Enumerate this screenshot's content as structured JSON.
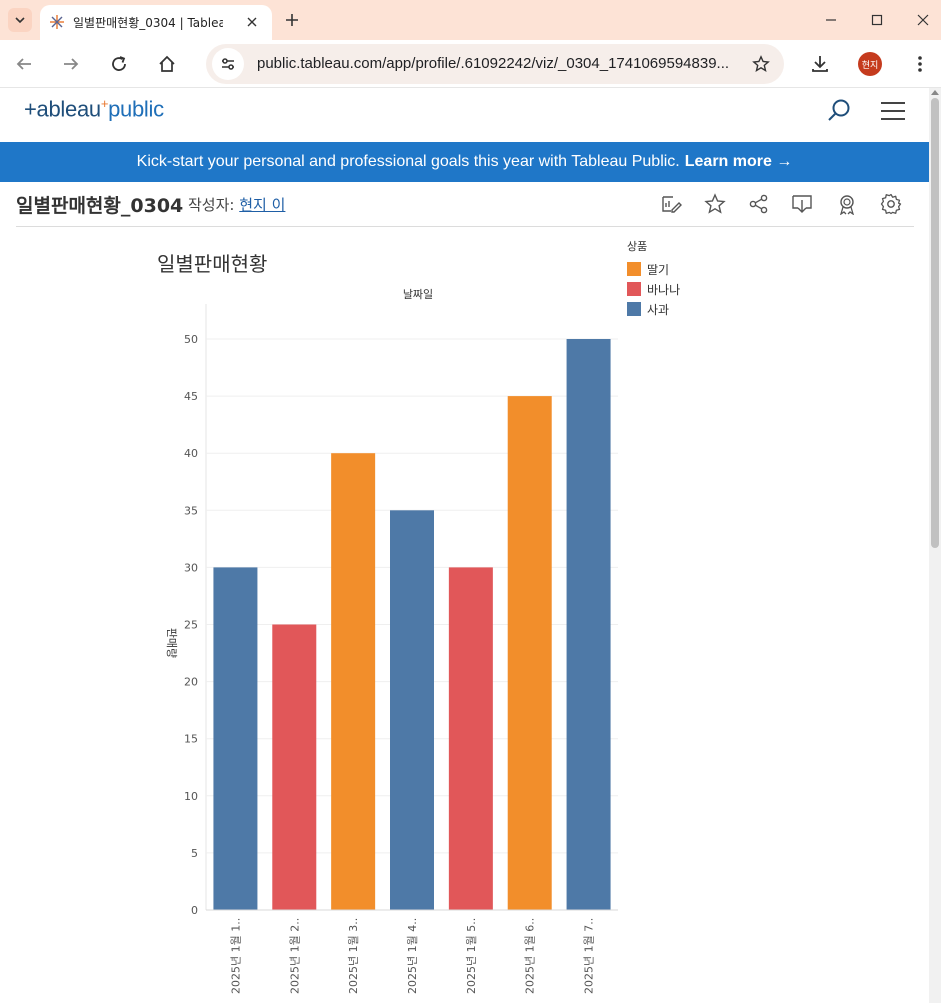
{
  "browser": {
    "tab_title": "일별판매현황_0304 | Tablea",
    "url": "public.tableau.com/app/profile/.61092242/viz/_0304_1741069594839...",
    "profile_initials": "현지"
  },
  "site": {
    "logo_main": "+ableau",
    "logo_sub": "public",
    "banner_text": "Kick-start your personal and professional goals this year with Tableau Public.",
    "banner_link": "Learn more →"
  },
  "viz": {
    "name": "일별판매현황_0304",
    "author_label": "작성자:",
    "author_name": "현지 이"
  },
  "chart_data": {
    "type": "bar",
    "title": "일별판매현황",
    "column_header": "날짜일",
    "ylabel": "판매량",
    "ylim": [
      0,
      50
    ],
    "yticks": [
      0,
      5,
      10,
      15,
      20,
      25,
      30,
      35,
      40,
      45,
      50
    ],
    "categories": [
      "2025년 1월 1..",
      "2025년 1월 2..",
      "2025년 1월 3..",
      "2025년 1월 4..",
      "2025년 1월 5..",
      "2025년 1월 6..",
      "2025년 1월 7.."
    ],
    "values": [
      30,
      25,
      40,
      35,
      30,
      45,
      50
    ],
    "product": [
      "사과",
      "바나나",
      "딸기",
      "사과",
      "바나나",
      "딸기",
      "사과"
    ],
    "legend_title": "상품",
    "legend": [
      {
        "name": "딸기",
        "color": "#f28e2b"
      },
      {
        "name": "바나나",
        "color": "#e15759"
      },
      {
        "name": "사과",
        "color": "#4e79a7"
      }
    ]
  }
}
